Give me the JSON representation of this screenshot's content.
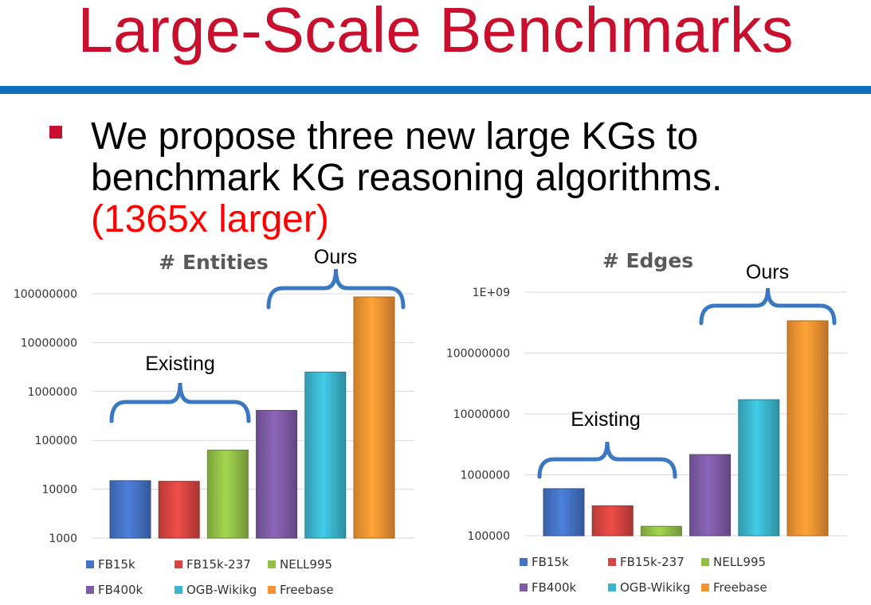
{
  "slide": {
    "title": "Large-Scale Benchmarks",
    "bullet_line1": "We propose three new large KGs to",
    "bullet_line2": "benchmark KG reasoning algorithms.",
    "bullet_highlight": "(1365x larger)"
  },
  "colors": {
    "title": "#c8102e",
    "rule": "#0f6fc0",
    "brace": "#3b78c2",
    "FB15k": "#4472c4",
    "FB15k-237": "#d64541",
    "NELL995": "#92c047",
    "FB400k": "#7f5aa6",
    "OGB-Wikikg": "#3bb6cf",
    "Freebase": "#f59331"
  },
  "annotations": {
    "entities_ours": "Ours",
    "entities_existing": "Existing",
    "edges_ours": "Ours",
    "edges_existing": "Existing"
  },
  "chart_data": [
    {
      "type": "bar",
      "title": "# Entities",
      "scale": "log",
      "ylim": [
        1000,
        100000000
      ],
      "yticks": [
        "1000",
        "10000",
        "100000",
        "1000000",
        "10000000",
        "100000000"
      ],
      "categories": [
        "FB15k",
        "FB15k-237",
        "NELL995",
        "FB400k",
        "OGB-Wikikg",
        "Freebase"
      ],
      "values": [
        14951,
        14505,
        63361,
        409829,
        2500604,
        86054151
      ],
      "legend_position": "bottom",
      "grid": true
    },
    {
      "type": "bar",
      "title": "# Edges",
      "scale": "log",
      "ylim": [
        100000,
        1000000000
      ],
      "yticks": [
        "100000",
        "1000000",
        "10000000",
        "100000000",
        "1E+09"
      ],
      "categories": [
        "FB15k",
        "FB15k-237",
        "NELL995",
        "FB400k",
        "OGB-Wikikg",
        "Freebase"
      ],
      "values": [
        592213,
        310079,
        142804,
        2151671,
        17137181,
        338586276
      ],
      "legend_position": "bottom",
      "grid": true
    }
  ]
}
